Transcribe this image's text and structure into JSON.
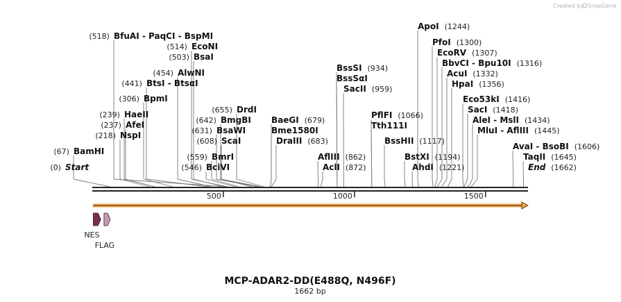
{
  "credit": {
    "prefix": "Created by",
    "brand": "SnapGene"
  },
  "title": "MCP-ADAR2-DD(E488Q, N496F)",
  "length_label": "1662 bp",
  "sequence_length": 1662,
  "scale": {
    "ticks": [
      500,
      1000,
      1500
    ]
  },
  "colors": {
    "nes": "#7a2e52",
    "flag": "#c89ab8",
    "orf_arrow": "#f2a24a",
    "backbone": "#222222",
    "label_line": "#777777"
  },
  "cut_sites": [
    {
      "pos_label": "(0)",
      "name": "Start",
      "pos": 0,
      "kind": "end"
    },
    {
      "pos_label": "(67)",
      "name": "BamHI",
      "pos": 67
    },
    {
      "pos_label": "(218)",
      "name": "NspI",
      "pos": 218
    },
    {
      "pos_label": "(237)",
      "name": "AfeI",
      "pos": 237
    },
    {
      "pos_label": "(239)",
      "name": "HaeII",
      "pos": 239
    },
    {
      "pos_label": "(306)",
      "name": "BpmI",
      "pos": 306
    },
    {
      "pos_label": "(441)",
      "name": "BtsI - BtsαI",
      "pos": 441
    },
    {
      "pos_label": "(454)",
      "name": "AlwNI",
      "pos": 454
    },
    {
      "pos_label": "(503)",
      "name": "BsaI",
      "pos": 503
    },
    {
      "pos_label": "(514)",
      "name": "EcoNI",
      "pos": 514
    },
    {
      "pos_label": "(518)",
      "name": "BfuAI - PaqCI - BspMI",
      "pos": 518
    },
    {
      "pos_label": "(546)",
      "name": "BciVI",
      "pos": 546
    },
    {
      "pos_label": "(559)",
      "name": "BmrI",
      "pos": 559
    },
    {
      "pos_label": "(608)",
      "name": "ScaI",
      "pos": 608
    },
    {
      "pos_label": "(631)",
      "name": "BsaWI",
      "pos": 631
    },
    {
      "pos_label": "(642)",
      "name": "BmgBI",
      "pos": 642
    },
    {
      "pos_label": "(655)",
      "name": "DrdI",
      "pos": 655
    },
    {
      "pos_label": "(679)",
      "name": "BaeGI",
      "pos": 679
    },
    {
      "pos_label": "",
      "name": "Bme1580I",
      "pos": 679
    },
    {
      "pos_label": "(683)",
      "name": "DraIII",
      "pos": 683
    },
    {
      "pos_label": "(862)",
      "name": "AflIII",
      "pos": 862
    },
    {
      "pos_label": "(872)",
      "name": "AclI",
      "pos": 872
    },
    {
      "pos_label": "(934)",
      "name": "BssSI",
      "pos": 934
    },
    {
      "pos_label": "",
      "name": "BssSαI",
      "pos": 934
    },
    {
      "pos_label": "(959)",
      "name": "SacII",
      "pos": 959
    },
    {
      "pos_label": "(1066)",
      "name": "PflFI",
      "pos": 1066
    },
    {
      "pos_label": "",
      "name": "Tth111I",
      "pos": 1066
    },
    {
      "pos_label": "(1117)",
      "name": "BssHII",
      "pos": 1117
    },
    {
      "pos_label": "(1194)",
      "name": "BstXI",
      "pos": 1194
    },
    {
      "pos_label": "(1221)",
      "name": "AhdI",
      "pos": 1221
    },
    {
      "pos_label": "(1244)",
      "name": "ApoI",
      "pos": 1244
    },
    {
      "pos_label": "(1300)",
      "name": "PfoI",
      "pos": 1300
    },
    {
      "pos_label": "(1307)",
      "name": "EcoRV",
      "pos": 1307
    },
    {
      "pos_label": "(1316)",
      "name": "BbvCI - Bpu10I",
      "pos": 1316
    },
    {
      "pos_label": "(1332)",
      "name": "AcuI",
      "pos": 1332
    },
    {
      "pos_label": "(1356)",
      "name": "HpaI",
      "pos": 1356
    },
    {
      "pos_label": "(1416)",
      "name": "Eco53kI",
      "pos": 1416
    },
    {
      "pos_label": "(1418)",
      "name": "SacI",
      "pos": 1418
    },
    {
      "pos_label": "(1434)",
      "name": "AleI - MslI",
      "pos": 1434
    },
    {
      "pos_label": "(1445)",
      "name": "MluI - AflIII",
      "pos": 1445
    },
    {
      "pos_label": "(1606)",
      "name": "AvaI - BsoBI",
      "pos": 1606
    },
    {
      "pos_label": "(1645)",
      "name": "TaqII",
      "pos": 1645
    },
    {
      "pos_label": "(1662)",
      "name": "End",
      "pos": 1662,
      "kind": "end"
    }
  ],
  "features": [
    {
      "name": "NES",
      "start": 1,
      "end": 30,
      "color": "#7a2e52"
    },
    {
      "name": "FLAG",
      "start": 42,
      "end": 66,
      "color": "#c89ab8"
    }
  ]
}
